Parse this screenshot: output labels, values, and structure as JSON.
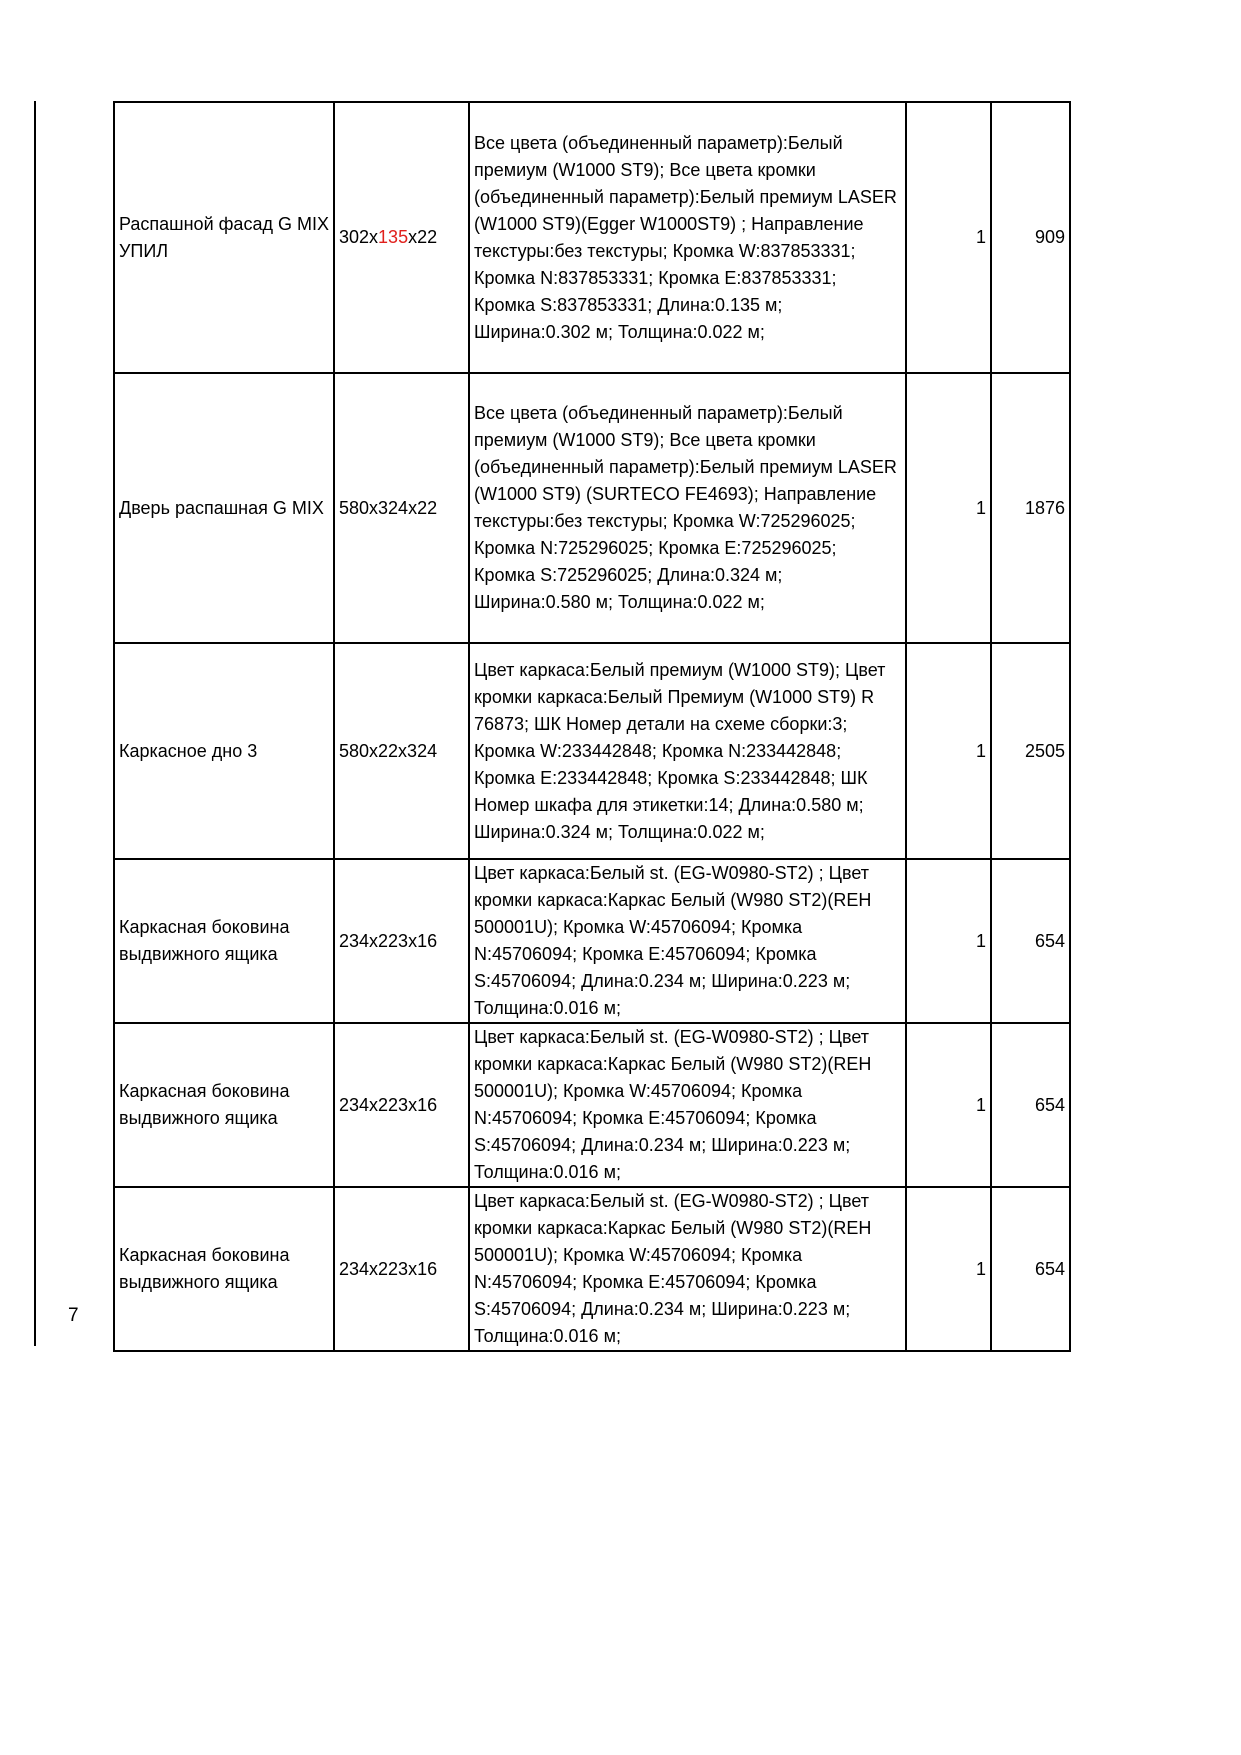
{
  "page_number": "7",
  "rows": [
    {
      "name": "Распашной фасад G MIX УПИЛ",
      "size": {
        "prefix": "302x",
        "highlight": "135",
        "suffix": "x22"
      },
      "description": "Все цвета (объединенный параметр):Белый премиум (W1000 ST9); Все цвета кромки (объединенный параметр):Белый премиум LASER (W1000 ST9)(Egger W1000ST9) ; Направление текстуры:без текстуры; Кромка W:837853331; Кромка N:837853331; Кромка E:837853331; Кромка S:837853331; Длина:0.135 м; Ширина:0.302 м; Толщина:0.022 м;",
      "qty": "1",
      "code": "909"
    },
    {
      "name": "Дверь распашная G MIX",
      "size": {
        "prefix": "580x324x22",
        "highlight": "",
        "suffix": ""
      },
      "description": "Все цвета (объединенный параметр):Белый премиум (W1000 ST9); Все цвета кромки (объединенный параметр):Белый премиум LASER (W1000 ST9) (SURTECO FE4693); Направление текстуры:без текстуры; Кромка W:725296025; Кромка N:725296025; Кромка E:725296025; Кромка S:725296025; Длина:0.324 м; Ширина:0.580 м; Толщина:0.022 м;",
      "qty": "1",
      "code": "1876"
    },
    {
      "name": "Каркасное дно 3",
      "size": {
        "prefix": "580x22x324",
        "highlight": "",
        "suffix": ""
      },
      "description": "Цвет каркаса:Белый премиум (W1000 ST9); Цвет кромки каркаса:Белый Премиум (W1000 ST9) R 76873; ШК Номер детали на схеме сборки:3; Кромка W:233442848; Кромка N:233442848; Кромка E:233442848; Кромка S:233442848; ШК Номер шкафа для этикетки:14; Длина:0.580 м; Ширина:0.324 м; Толщина:0.022 м;",
      "qty": "1",
      "code": "2505"
    },
    {
      "name": "Каркасная боковина выдвижного ящика",
      "size": {
        "prefix": "234x223x16",
        "highlight": "",
        "suffix": ""
      },
      "description": "Цвет каркаса:Белый st. (EG-W0980-ST2) ; Цвет кромки каркаса:Каркас Белый (W980 ST2)(REH 500001U); Кромка W:45706094; Кромка N:45706094; Кромка E:45706094; Кромка S:45706094; Длина:0.234 м; Ширина:0.223 м; Толщина:0.016 м;",
      "qty": "1",
      "code": "654"
    },
    {
      "name": "Каркасная боковина выдвижного ящика",
      "size": {
        "prefix": "234x223x16",
        "highlight": "",
        "suffix": ""
      },
      "description": "Цвет каркаса:Белый st. (EG-W0980-ST2) ; Цвет кромки каркаса:Каркас Белый (W980 ST2)(REH 500001U); Кромка W:45706094; Кромка N:45706094; Кромка E:45706094; Кромка S:45706094; Длина:0.234 м; Ширина:0.223 м; Толщина:0.016 м;",
      "qty": "1",
      "code": "654"
    },
    {
      "name": "Каркасная боковина выдвижного ящика",
      "size": {
        "prefix": "234x223x16",
        "highlight": "",
        "suffix": ""
      },
      "description": "Цвет каркаса:Белый st. (EG-W0980-ST2) ; Цвет кромки каркаса:Каркас Белый (W980 ST2)(REH 500001U); Кромка W:45706094; Кромка N:45706094; Кромка E:45706094; Кромка S:45706094; Длина:0.234 м; Ширина:0.223 м; Толщина:0.016 м;",
      "qty": "1",
      "code": "654"
    }
  ],
  "colors": {
    "highlight": "#e0201c",
    "border": "#000000"
  }
}
